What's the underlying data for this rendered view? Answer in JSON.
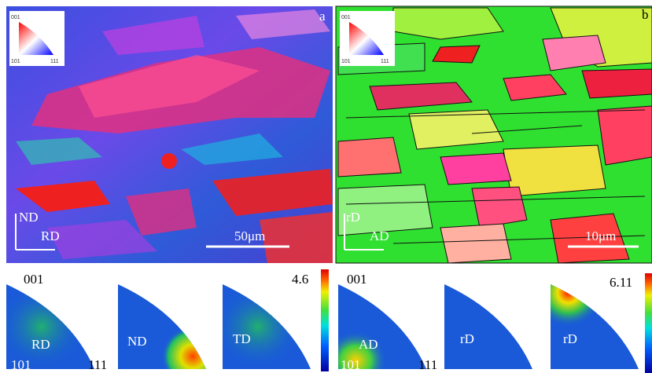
{
  "panel_a": {
    "label": "a",
    "key": {
      "top": "001",
      "left": "101",
      "right": "111"
    },
    "axes": {
      "vertical": "ND",
      "horizontal": "RD"
    },
    "scale_bar": "50μm"
  },
  "panel_b": {
    "label": "b",
    "key": {
      "top": "001",
      "left": "101",
      "right": "111"
    },
    "axes": {
      "vertical": "rD",
      "horizontal": "AD"
    },
    "scale_bar": "10μm"
  },
  "ipf_a": {
    "corner_top": "001",
    "corner_left": "101",
    "corner_right": "111",
    "max": 4.6,
    "directions": [
      "RD",
      "ND",
      "TD"
    ]
  },
  "ipf_b": {
    "corner_top": "001",
    "corner_left": "101",
    "corner_right": "111",
    "max": 6.11,
    "directions": [
      "AD",
      "rD",
      "rD"
    ]
  }
}
